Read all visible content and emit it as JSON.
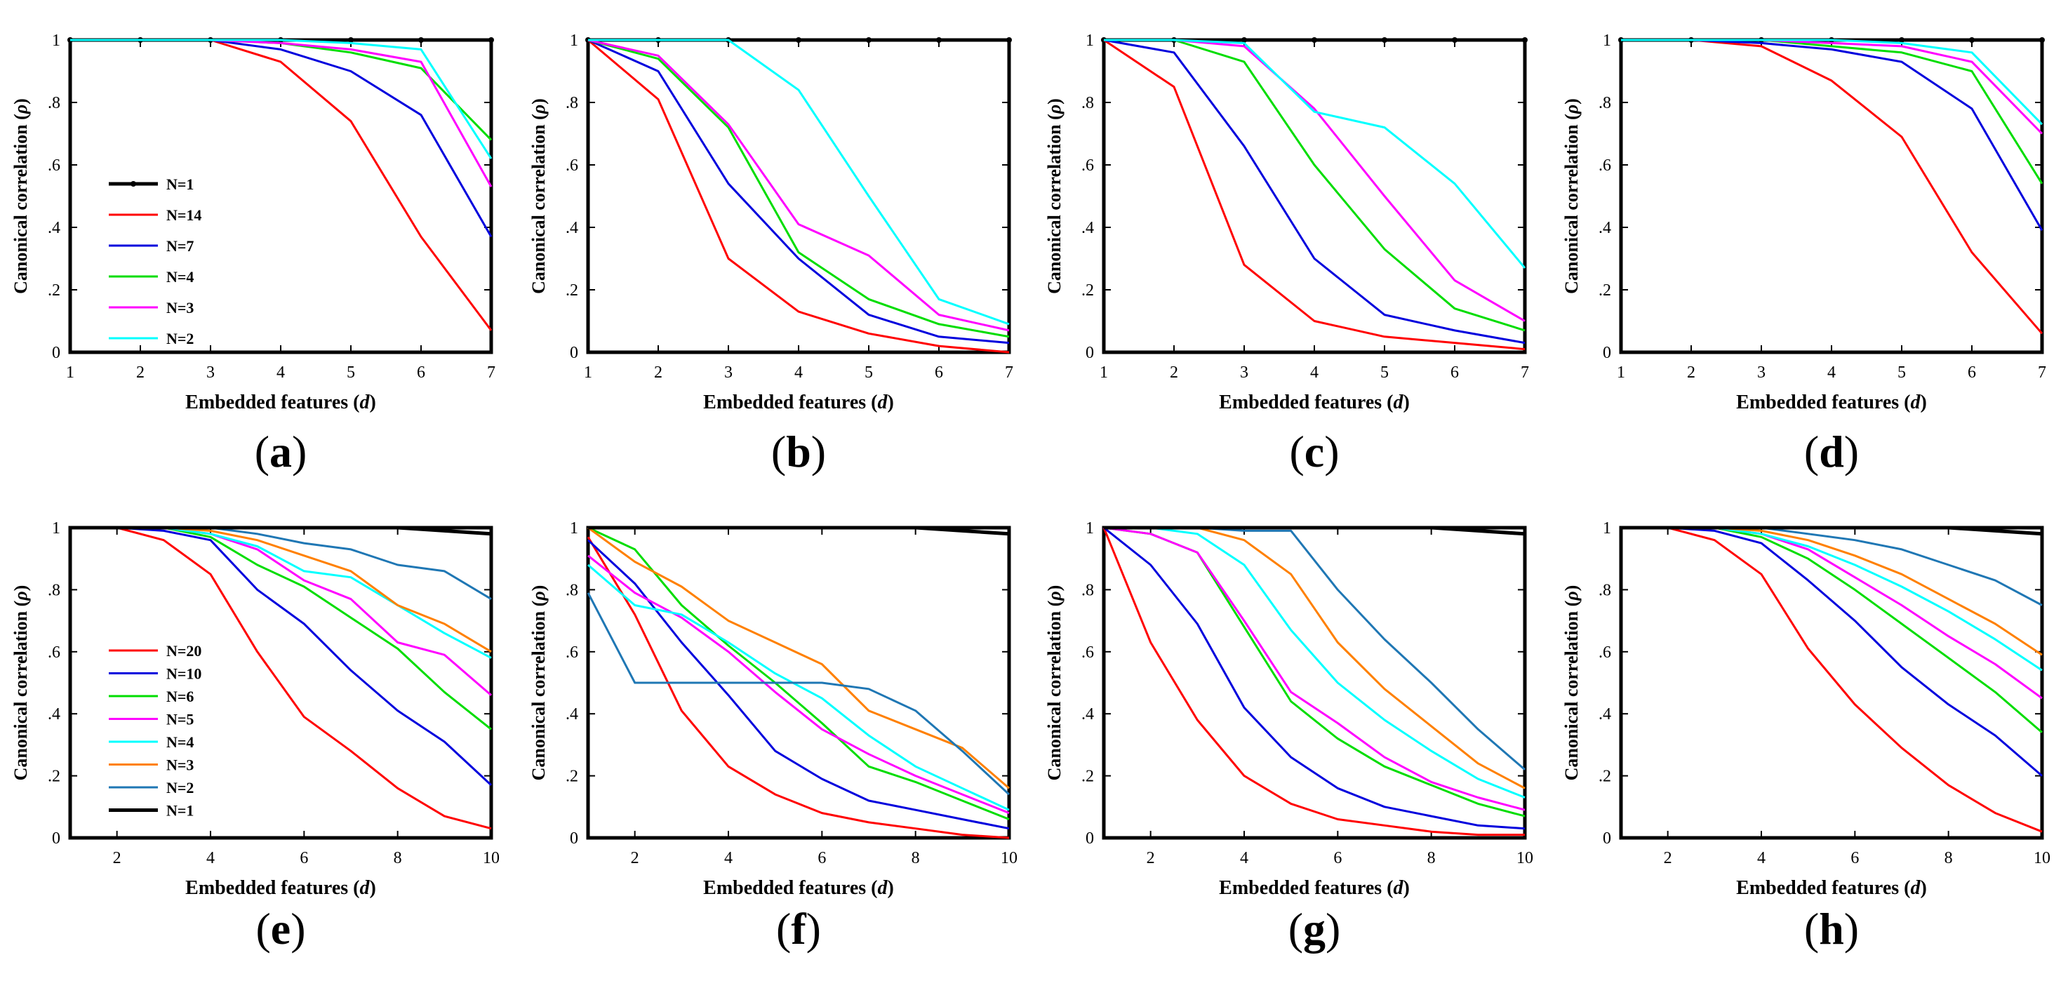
{
  "chart_data": [
    {
      "panel": "(a)",
      "type": "line",
      "xlabel": "Embedded features",
      "xlabel_var": "d",
      "ylabel": "Canonical correlation",
      "ylabel_var": "ρ",
      "xlim": [
        1,
        7
      ],
      "ylim": [
        0,
        1
      ],
      "xticks": [
        1,
        2,
        3,
        4,
        5,
        6,
        7
      ],
      "yticks": [
        0,
        0.2,
        0.4,
        0.6,
        0.8,
        1
      ],
      "legend_position": "center-left",
      "x": [
        1,
        2,
        3,
        4,
        5,
        6,
        7
      ],
      "series": [
        {
          "name": "N=1",
          "color": "#000000",
          "markers": true,
          "values": [
            1.0,
            1.0,
            1.0,
            1.0,
            1.0,
            1.0,
            1.0
          ]
        },
        {
          "name": "N=14",
          "color": "#ff0000",
          "values": [
            1.0,
            1.0,
            1.0,
            0.93,
            0.74,
            0.37,
            0.07
          ]
        },
        {
          "name": "N=7",
          "color": "#0000dd",
          "values": [
            1.0,
            1.0,
            1.0,
            0.97,
            0.9,
            0.76,
            0.37
          ]
        },
        {
          "name": "N=4",
          "color": "#00dd00",
          "values": [
            1.0,
            1.0,
            1.0,
            0.99,
            0.96,
            0.91,
            0.68
          ]
        },
        {
          "name": "N=3",
          "color": "#ff00ff",
          "values": [
            1.0,
            1.0,
            1.0,
            0.99,
            0.97,
            0.93,
            0.53
          ]
        },
        {
          "name": "N=2",
          "color": "#00ffff",
          "values": [
            1.0,
            1.0,
            1.0,
            1.0,
            0.99,
            0.97,
            0.62
          ]
        }
      ]
    },
    {
      "panel": "(b)",
      "type": "line",
      "xlabel": "Embedded features",
      "xlabel_var": "d",
      "ylabel": "Canonical correlation",
      "ylabel_var": "ρ",
      "xlim": [
        1,
        7
      ],
      "ylim": [
        0,
        1
      ],
      "xticks": [
        1,
        2,
        3,
        4,
        5,
        6,
        7
      ],
      "yticks": [
        0,
        0.2,
        0.4,
        0.6,
        0.8,
        1
      ],
      "x": [
        1,
        2,
        3,
        4,
        5,
        6,
        7
      ],
      "series": [
        {
          "name": "N=1",
          "color": "#000000",
          "markers": true,
          "values": [
            1.0,
            1.0,
            1.0,
            1.0,
            1.0,
            1.0,
            1.0
          ]
        },
        {
          "name": "N=14",
          "color": "#ff0000",
          "values": [
            1.0,
            0.81,
            0.3,
            0.13,
            0.06,
            0.02,
            0.0
          ]
        },
        {
          "name": "N=7",
          "color": "#0000dd",
          "values": [
            1.0,
            0.9,
            0.54,
            0.3,
            0.12,
            0.05,
            0.03
          ]
        },
        {
          "name": "N=4",
          "color": "#00dd00",
          "values": [
            1.0,
            0.94,
            0.72,
            0.32,
            0.17,
            0.09,
            0.05
          ]
        },
        {
          "name": "N=3",
          "color": "#ff00ff",
          "values": [
            1.0,
            0.95,
            0.73,
            0.41,
            0.31,
            0.12,
            0.07
          ]
        },
        {
          "name": "N=2",
          "color": "#00ffff",
          "values": [
            1.0,
            1.0,
            1.0,
            0.84,
            0.5,
            0.17,
            0.09
          ]
        }
      ]
    },
    {
      "panel": "(c)",
      "type": "line",
      "xlabel": "Embedded features",
      "xlabel_var": "d",
      "ylabel": "Canonical correlation",
      "ylabel_var": "ρ",
      "xlim": [
        1,
        7
      ],
      "ylim": [
        0,
        1
      ],
      "xticks": [
        1,
        2,
        3,
        4,
        5,
        6,
        7
      ],
      "yticks": [
        0,
        0.2,
        0.4,
        0.6,
        0.8,
        1
      ],
      "x": [
        1,
        2,
        3,
        4,
        5,
        6,
        7
      ],
      "series": [
        {
          "name": "N=1",
          "color": "#000000",
          "markers": true,
          "values": [
            1.0,
            1.0,
            1.0,
            1.0,
            1.0,
            1.0,
            1.0
          ]
        },
        {
          "name": "N=14",
          "color": "#ff0000",
          "values": [
            1.0,
            0.85,
            0.28,
            0.1,
            0.05,
            0.03,
            0.01
          ]
        },
        {
          "name": "N=7",
          "color": "#0000dd",
          "values": [
            1.0,
            0.96,
            0.66,
            0.3,
            0.12,
            0.07,
            0.03
          ]
        },
        {
          "name": "N=4",
          "color": "#00dd00",
          "values": [
            1.0,
            1.0,
            0.93,
            0.6,
            0.33,
            0.14,
            0.07
          ]
        },
        {
          "name": "N=3",
          "color": "#ff00ff",
          "values": [
            1.0,
            1.0,
            0.98,
            0.78,
            0.5,
            0.23,
            0.1
          ]
        },
        {
          "name": "N=2",
          "color": "#00ffff",
          "values": [
            1.0,
            1.0,
            0.99,
            0.77,
            0.72,
            0.54,
            0.27
          ]
        }
      ]
    },
    {
      "panel": "(d)",
      "type": "line",
      "xlabel": "Embedded features",
      "xlabel_var": "d",
      "ylabel": "Canonical correlation",
      "ylabel_var": "ρ",
      "xlim": [
        1,
        7
      ],
      "ylim": [
        0,
        1
      ],
      "xticks": [
        1,
        2,
        3,
        4,
        5,
        6,
        7
      ],
      "yticks": [
        0,
        0.2,
        0.4,
        0.6,
        0.8,
        1
      ],
      "x": [
        1,
        2,
        3,
        4,
        5,
        6,
        7
      ],
      "series": [
        {
          "name": "N=1",
          "color": "#000000",
          "markers": true,
          "values": [
            1.0,
            1.0,
            1.0,
            1.0,
            1.0,
            1.0,
            1.0
          ]
        },
        {
          "name": "N=14",
          "color": "#ff0000",
          "values": [
            1.0,
            1.0,
            0.98,
            0.87,
            0.69,
            0.32,
            0.06
          ]
        },
        {
          "name": "N=7",
          "color": "#0000dd",
          "values": [
            1.0,
            1.0,
            0.99,
            0.97,
            0.93,
            0.78,
            0.39
          ]
        },
        {
          "name": "N=4",
          "color": "#00dd00",
          "values": [
            1.0,
            1.0,
            1.0,
            0.98,
            0.96,
            0.9,
            0.54
          ]
        },
        {
          "name": "N=3",
          "color": "#ff00ff",
          "values": [
            1.0,
            1.0,
            1.0,
            0.99,
            0.98,
            0.93,
            0.7
          ]
        },
        {
          "name": "N=2",
          "color": "#00ffff",
          "values": [
            1.0,
            1.0,
            1.0,
            1.0,
            0.99,
            0.96,
            0.73
          ]
        }
      ]
    },
    {
      "panel": "(e)",
      "type": "line",
      "xlabel": "Embedded features",
      "xlabel_var": "d",
      "ylabel": "Canonical correlation",
      "ylabel_var": "ρ",
      "xlim": [
        1,
        10
      ],
      "ylim": [
        0,
        1
      ],
      "xticks": [
        2,
        4,
        6,
        8,
        10
      ],
      "yticks": [
        0,
        0.2,
        0.4,
        0.6,
        0.8,
        1
      ],
      "legend_position": "bottom-left",
      "x": [
        1,
        2,
        3,
        4,
        5,
        6,
        7,
        8,
        9,
        10
      ],
      "series": [
        {
          "name": "N=20",
          "color": "#ff0000",
          "values": [
            1.0,
            1.0,
            0.96,
            0.85,
            0.6,
            0.39,
            0.28,
            0.16,
            0.07,
            0.03
          ]
        },
        {
          "name": "N=10",
          "color": "#0000dd",
          "values": [
            1.0,
            1.0,
            0.99,
            0.96,
            0.8,
            0.69,
            0.54,
            0.41,
            0.31,
            0.17
          ]
        },
        {
          "name": "N=6",
          "color": "#00dd00",
          "values": [
            1.0,
            1.0,
            1.0,
            0.97,
            0.88,
            0.81,
            0.71,
            0.61,
            0.47,
            0.35
          ]
        },
        {
          "name": "N=5",
          "color": "#ff00ff",
          "values": [
            1.0,
            1.0,
            1.0,
            0.98,
            0.93,
            0.83,
            0.77,
            0.63,
            0.59,
            0.46
          ]
        },
        {
          "name": "N=4",
          "color": "#00ffff",
          "values": [
            1.0,
            1.0,
            1.0,
            0.98,
            0.94,
            0.86,
            0.84,
            0.75,
            0.66,
            0.58
          ]
        },
        {
          "name": "N=3",
          "color": "#ff8000",
          "values": [
            1.0,
            1.0,
            1.0,
            0.99,
            0.96,
            0.91,
            0.86,
            0.75,
            0.69,
            0.6
          ]
        },
        {
          "name": "N=2",
          "color": "#1f77b4",
          "values": [
            1.0,
            1.0,
            1.0,
            1.0,
            0.98,
            0.95,
            0.93,
            0.88,
            0.86,
            0.77
          ]
        },
        {
          "name": "N=1",
          "color": "#000000",
          "values": [
            1.0,
            1.0,
            1.0,
            1.0,
            1.0,
            1.0,
            1.0,
            1.0,
            0.99,
            0.98
          ]
        }
      ]
    },
    {
      "panel": "(f)",
      "type": "line",
      "xlabel": "Embedded features",
      "xlabel_var": "d",
      "ylabel": "Canonical correlation",
      "ylabel_var": "ρ",
      "xlim": [
        1,
        10
      ],
      "ylim": [
        0,
        1
      ],
      "xticks": [
        2,
        4,
        6,
        8,
        10
      ],
      "yticks": [
        0,
        0.2,
        0.4,
        0.6,
        0.8,
        1
      ],
      "x": [
        1,
        2,
        3,
        4,
        5,
        6,
        7,
        8,
        9,
        10
      ],
      "series": [
        {
          "name": "N=20",
          "color": "#ff0000",
          "values": [
            0.97,
            0.72,
            0.41,
            0.23,
            0.14,
            0.08,
            0.05,
            0.03,
            0.01,
            0.0
          ]
        },
        {
          "name": "N=10",
          "color": "#0000dd",
          "values": [
            0.96,
            0.82,
            0.63,
            0.46,
            0.28,
            0.19,
            0.12,
            0.09,
            0.06,
            0.03
          ]
        },
        {
          "name": "N=6",
          "color": "#00dd00",
          "values": [
            1.0,
            0.93,
            0.75,
            0.62,
            0.5,
            0.37,
            0.23,
            0.18,
            0.12,
            0.06
          ]
        },
        {
          "name": "N=5",
          "color": "#ff00ff",
          "values": [
            0.91,
            0.79,
            0.71,
            0.6,
            0.47,
            0.35,
            0.27,
            0.2,
            0.14,
            0.08
          ]
        },
        {
          "name": "N=4",
          "color": "#00ffff",
          "values": [
            0.88,
            0.75,
            0.72,
            0.63,
            0.53,
            0.45,
            0.33,
            0.23,
            0.16,
            0.09
          ]
        },
        {
          "name": "N=3",
          "color": "#ff8000",
          "values": [
            1.0,
            0.89,
            0.81,
            0.7,
            0.63,
            0.56,
            0.41,
            0.35,
            0.29,
            0.16
          ]
        },
        {
          "name": "N=2",
          "color": "#1f77b4",
          "values": [
            0.79,
            0.5,
            0.5,
            0.5,
            0.5,
            0.5,
            0.48,
            0.41,
            0.28,
            0.14
          ]
        },
        {
          "name": "N=1",
          "color": "#000000",
          "values": [
            1.0,
            1.0,
            1.0,
            1.0,
            1.0,
            1.0,
            1.0,
            1.0,
            0.99,
            0.98
          ]
        }
      ]
    },
    {
      "panel": "(g)",
      "type": "line",
      "xlabel": "Embedded features",
      "xlabel_var": "d",
      "ylabel": "Canonical correlation",
      "ylabel_var": "ρ",
      "xlim": [
        1,
        10
      ],
      "ylim": [
        0,
        1
      ],
      "xticks": [
        2,
        4,
        6,
        8,
        10
      ],
      "yticks": [
        0,
        0.2,
        0.4,
        0.6,
        0.8,
        1
      ],
      "x": [
        1,
        2,
        3,
        4,
        5,
        6,
        7,
        8,
        9,
        10
      ],
      "series": [
        {
          "name": "N=20",
          "color": "#ff0000",
          "values": [
            1.0,
            0.63,
            0.38,
            0.2,
            0.11,
            0.06,
            0.04,
            0.02,
            0.01,
            0.01
          ]
        },
        {
          "name": "N=10",
          "color": "#0000dd",
          "values": [
            1.0,
            0.88,
            0.69,
            0.42,
            0.26,
            0.16,
            0.1,
            0.07,
            0.04,
            0.03
          ]
        },
        {
          "name": "N=6",
          "color": "#00dd00",
          "values": [
            1.0,
            0.98,
            0.92,
            0.68,
            0.44,
            0.32,
            0.23,
            0.17,
            0.11,
            0.07
          ]
        },
        {
          "name": "N=5",
          "color": "#ff00ff",
          "values": [
            1.0,
            0.98,
            0.92,
            0.7,
            0.47,
            0.37,
            0.26,
            0.18,
            0.13,
            0.09
          ]
        },
        {
          "name": "N=4",
          "color": "#00ffff",
          "values": [
            1.0,
            1.0,
            0.98,
            0.88,
            0.67,
            0.5,
            0.38,
            0.28,
            0.19,
            0.13
          ]
        },
        {
          "name": "N=3",
          "color": "#ff8000",
          "values": [
            1.0,
            1.0,
            1.0,
            0.96,
            0.85,
            0.63,
            0.48,
            0.36,
            0.24,
            0.16
          ]
        },
        {
          "name": "N=2",
          "color": "#1f77b4",
          "values": [
            1.0,
            1.0,
            1.0,
            0.99,
            0.99,
            0.8,
            0.64,
            0.5,
            0.35,
            0.22
          ]
        },
        {
          "name": "N=1",
          "color": "#000000",
          "values": [
            1.0,
            1.0,
            1.0,
            1.0,
            1.0,
            1.0,
            1.0,
            1.0,
            0.99,
            0.98
          ]
        }
      ]
    },
    {
      "panel": "(h)",
      "type": "line",
      "xlabel": "Embedded features",
      "xlabel_var": "d",
      "ylabel": "Canonical correlation",
      "ylabel_var": "ρ",
      "xlim": [
        1,
        10
      ],
      "ylim": [
        0,
        1
      ],
      "xticks": [
        2,
        4,
        6,
        8,
        10
      ],
      "yticks": [
        0,
        0.2,
        0.4,
        0.6,
        0.8,
        1
      ],
      "x": [
        1,
        2,
        3,
        4,
        5,
        6,
        7,
        8,
        9,
        10
      ],
      "series": [
        {
          "name": "N=20",
          "color": "#ff0000",
          "values": [
            1.0,
            1.0,
            0.96,
            0.85,
            0.61,
            0.43,
            0.29,
            0.17,
            0.08,
            0.02
          ]
        },
        {
          "name": "N=10",
          "color": "#0000dd",
          "values": [
            1.0,
            1.0,
            0.99,
            0.95,
            0.83,
            0.7,
            0.55,
            0.43,
            0.33,
            0.2
          ]
        },
        {
          "name": "N=6",
          "color": "#00dd00",
          "values": [
            1.0,
            1.0,
            1.0,
            0.97,
            0.9,
            0.8,
            0.69,
            0.58,
            0.47,
            0.34
          ]
        },
        {
          "name": "N=5",
          "color": "#ff00ff",
          "values": [
            1.0,
            1.0,
            1.0,
            0.98,
            0.93,
            0.84,
            0.75,
            0.65,
            0.56,
            0.45
          ]
        },
        {
          "name": "N=4",
          "color": "#00ffff",
          "values": [
            1.0,
            1.0,
            1.0,
            0.98,
            0.94,
            0.88,
            0.81,
            0.73,
            0.64,
            0.54
          ]
        },
        {
          "name": "N=3",
          "color": "#ff8000",
          "values": [
            1.0,
            1.0,
            1.0,
            0.99,
            0.96,
            0.91,
            0.85,
            0.77,
            0.69,
            0.59
          ]
        },
        {
          "name": "N=2",
          "color": "#1f77b4",
          "values": [
            1.0,
            1.0,
            1.0,
            1.0,
            0.98,
            0.96,
            0.93,
            0.88,
            0.83,
            0.75
          ]
        },
        {
          "name": "N=1",
          "color": "#000000",
          "values": [
            1.0,
            1.0,
            1.0,
            1.0,
            1.0,
            1.0,
            1.0,
            1.0,
            0.99,
            0.98
          ]
        }
      ]
    }
  ]
}
